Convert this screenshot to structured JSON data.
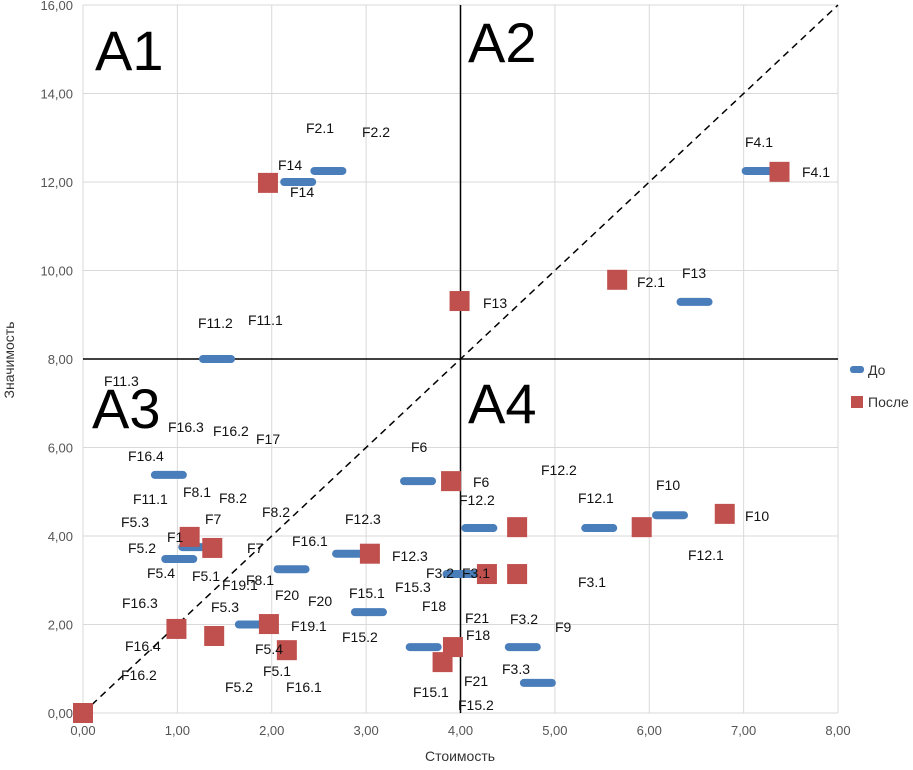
{
  "chart_data": {
    "type": "scatter",
    "title": "",
    "xlabel": "Стоимость",
    "ylabel": "Значимость",
    "xlim": [
      0,
      8
    ],
    "ylim": [
      0,
      16
    ],
    "xticks": [
      "0,00",
      "1,00",
      "2,00",
      "3,00",
      "4,00",
      "5,00",
      "6,00",
      "7,00",
      "8,00"
    ],
    "yticks": [
      "0,00",
      "2,00",
      "4,00",
      "6,00",
      "8,00",
      "10,00",
      "12,00",
      "14,00",
      "16,00"
    ],
    "grid": true,
    "legend_position": "right",
    "quadrant_lines": {
      "x": 4,
      "y": 8
    },
    "diagonal": {
      "from": [
        0,
        0
      ],
      "to": [
        8,
        16
      ],
      "style": "dashed"
    },
    "quadrant_labels": [
      "A1",
      "A2",
      "A3",
      "A4"
    ],
    "series": [
      {
        "name": "До",
        "color": "#4a7ebb",
        "marker": "dash",
        "points": [
          [
            2.6,
            12.25
          ],
          [
            2.28,
            12.0
          ],
          [
            7.17,
            12.25
          ],
          [
            6.48,
            9.29
          ],
          [
            1.42,
            8.0
          ],
          [
            0.91,
            5.38
          ],
          [
            3.55,
            5.24
          ],
          [
            4.2,
            4.18
          ],
          [
            5.47,
            4.18
          ],
          [
            6.22,
            4.47
          ],
          [
            2.83,
            3.6
          ],
          [
            2.21,
            3.25
          ],
          [
            1.2,
            3.75
          ],
          [
            1.02,
            3.48
          ],
          [
            4.0,
            3.14
          ],
          [
            3.03,
            2.28
          ],
          [
            1.8,
            2.0
          ],
          [
            3.61,
            1.49
          ],
          [
            4.66,
            1.49
          ],
          [
            4.82,
            0.68
          ]
        ]
      },
      {
        "name": "После",
        "color": "#c0504d",
        "marker": "square",
        "points": [
          [
            1.96,
            11.98
          ],
          [
            7.38,
            12.23
          ],
          [
            5.66,
            9.79
          ],
          [
            3.99,
            9.31
          ],
          [
            3.9,
            5.24
          ],
          [
            4.6,
            4.2
          ],
          [
            6.8,
            4.5
          ],
          [
            5.92,
            4.2
          ],
          [
            3.04,
            3.6
          ],
          [
            1.13,
            3.98
          ],
          [
            1.37,
            3.73
          ],
          [
            4.28,
            3.14
          ],
          [
            4.6,
            3.14
          ],
          [
            0.99,
            1.9
          ],
          [
            1.39,
            1.74
          ],
          [
            1.97,
            2.01
          ],
          [
            2.16,
            1.42
          ],
          [
            3.92,
            1.49
          ],
          [
            3.81,
            1.15
          ],
          [
            0,
            0
          ]
        ]
      }
    ],
    "annotations": [
      "F2.1",
      "F2.2",
      "F14",
      "F14",
      "F4.1",
      "F4.1",
      "F13",
      "F2.1",
      "F13",
      "F11.2",
      "F11.1",
      "F11.3",
      "F16.3",
      "F16.2",
      "F17",
      "F16.4",
      "F6",
      "F6",
      "F12.2",
      "F12.2",
      "F12.1",
      "F10",
      "F10",
      "F12.1",
      "F11.1",
      "F8.1",
      "F8.2",
      "F8.2",
      "F5.3",
      "F7",
      "F1",
      "F5.2",
      "F7",
      "F5.4",
      "F5.1",
      "F8.1",
      "F12.3",
      "F16.1",
      "F12.3",
      "F3.2",
      "F3.1",
      "F3.1",
      "F15.3",
      "F15.1",
      "F15.2",
      "F19.1",
      "F20",
      "F20",
      "F16.3",
      "F5.3",
      "F19.1",
      "F18",
      "F21",
      "F3.2",
      "F9",
      "F18",
      "F16.4",
      "F5.4",
      "F5.1",
      "F16.2",
      "F5.2",
      "F16.1",
      "F3.3",
      "F21",
      "F15.1",
      "F15.2"
    ]
  }
}
